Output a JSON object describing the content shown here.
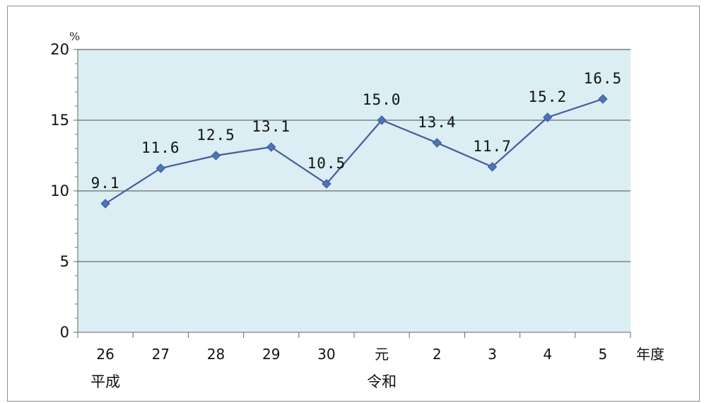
{
  "chart_data": {
    "type": "line",
    "title": "",
    "y_unit": "%",
    "x_unit": "年度",
    "categories": [
      "26",
      "27",
      "28",
      "29",
      "30",
      "元",
      "2",
      "3",
      "4",
      "5"
    ],
    "era_labels": [
      {
        "label": "平成",
        "category_index": 0
      },
      {
        "label": "令和",
        "category_index": 5
      }
    ],
    "series": [
      {
        "values": [
          9.1,
          11.6,
          12.5,
          13.1,
          10.5,
          15.0,
          13.4,
          11.7,
          15.2,
          16.5
        ],
        "data_labels": [
          "9.1",
          "11.6",
          "12.5",
          "13.1",
          "10.5",
          "15.0",
          "13.4",
          "11.7",
          "15.2",
          "16.5"
        ],
        "color": "#4a5a9c",
        "marker": "diamond",
        "marker_color": "#4f72b8"
      }
    ],
    "ylim": [
      0,
      20
    ],
    "yticks": [
      "0",
      "5",
      "10",
      "15",
      "20"
    ],
    "grid": true,
    "plot_background": "#daeef3",
    "gridline_color": "#808080"
  }
}
